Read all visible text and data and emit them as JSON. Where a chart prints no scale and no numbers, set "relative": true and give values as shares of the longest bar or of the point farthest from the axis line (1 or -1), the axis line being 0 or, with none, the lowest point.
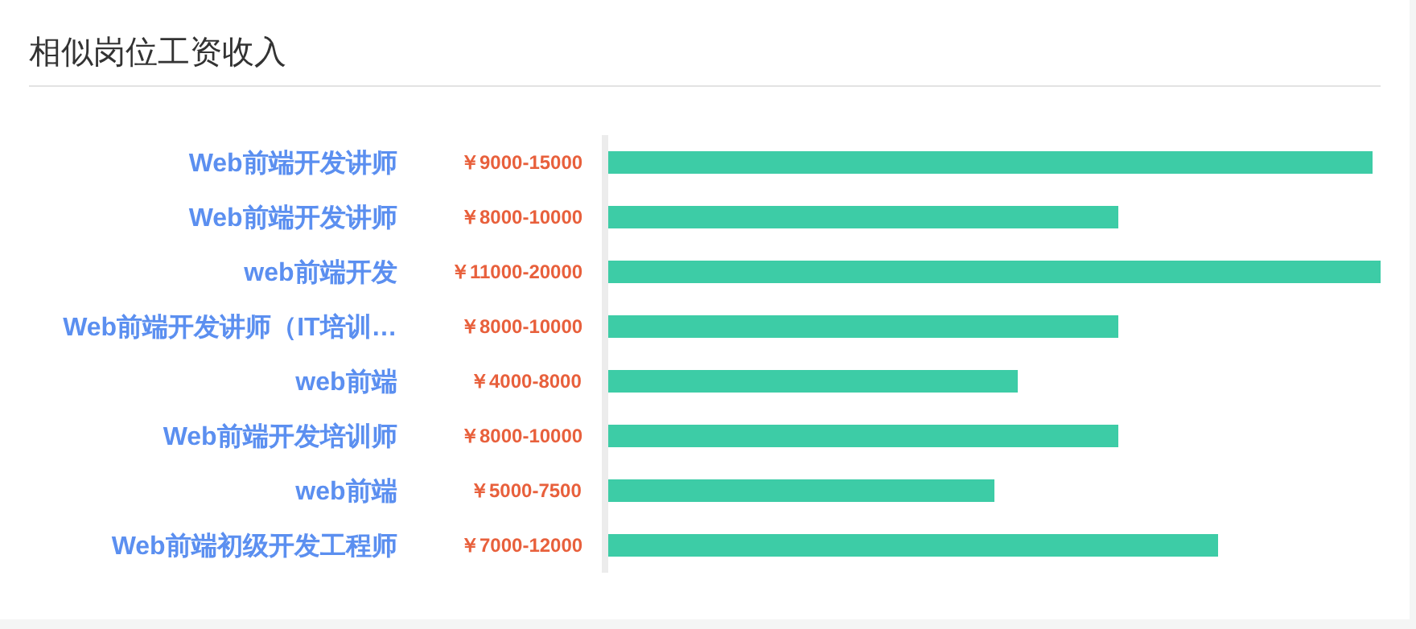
{
  "chart_data": {
    "type": "bar",
    "orientation": "horizontal",
    "relative": true,
    "title": "相似岗位工资收入",
    "categories": [
      "Web前端开发讲师",
      "Web前端开发讲师",
      "web前端开发",
      "Web前端开发讲师（IT培训…",
      "web前端",
      "Web前端开发培训师",
      "web前端",
      "Web前端初级开发工程师"
    ],
    "values": [
      0.99,
      0.66,
      1,
      0.66,
      0.53,
      0.66,
      0.5,
      0.79
    ],
    "annotations": [
      "￥9000-15000",
      "￥8000-10000",
      "￥11000-20000",
      "￥8000-10000",
      "￥4000-8000",
      "￥8000-10000",
      "￥5000-7500",
      "￥7000-12000"
    ],
    "tick_labels": "y",
    "color": "#3dcca6"
  }
}
